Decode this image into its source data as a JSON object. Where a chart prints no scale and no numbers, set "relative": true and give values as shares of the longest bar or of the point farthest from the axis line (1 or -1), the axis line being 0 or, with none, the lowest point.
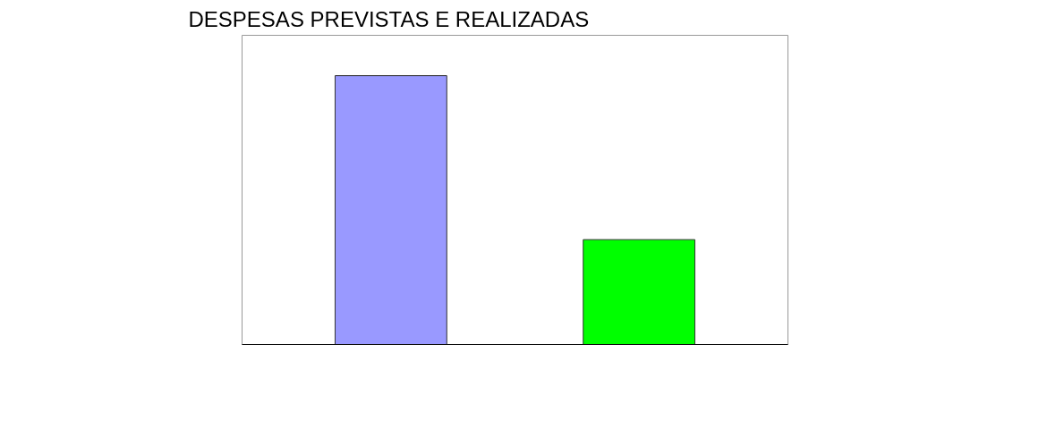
{
  "chart_data": {
    "type": "bar",
    "title": "DESPESAS PREVISTAS E REALIZADAS",
    "categories": [
      null,
      null
    ],
    "values": [
      1,
      0.39
    ],
    "colors": [
      "#9999ff",
      "#00ff00"
    ],
    "relative": true,
    "grid": false
  }
}
